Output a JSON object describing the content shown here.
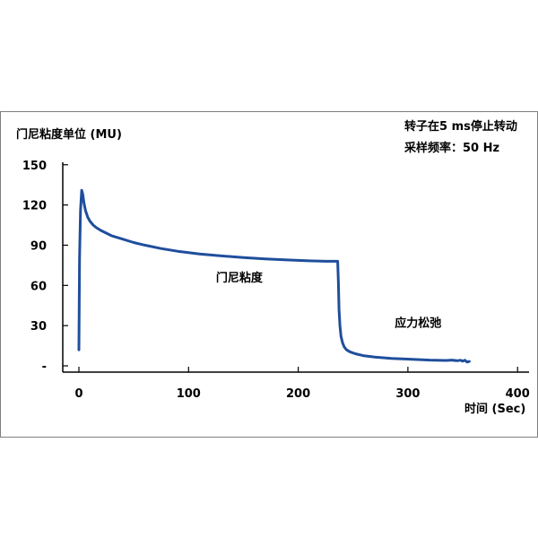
{
  "chart_data": {
    "type": "line",
    "ylabel": "门尼粘度单位 (MU)",
    "xlabel": "时间 (Sec)",
    "xlim": [
      -15,
      400
    ],
    "ylim": [
      0,
      155
    ],
    "x_ticks": [
      "0",
      "100",
      "200",
      "300",
      "400"
    ],
    "y_ticks": [
      "-",
      "30",
      "60",
      "90",
      "120",
      "150"
    ],
    "grid": false,
    "info_lines": [
      "转子在5 ms停止转动",
      "采样频率：50 Hz"
    ],
    "annotations": [
      {
        "text": "门尼粘度",
        "x": 125,
        "y": 63
      },
      {
        "text": "应力松弛",
        "x": 288,
        "y": 29
      }
    ],
    "line_color": "#1f4e9c",
    "series": [
      {
        "x": [
          0,
          0.6,
          1.5,
          2.5,
          3.5,
          4.5,
          6,
          8,
          10,
          13,
          16,
          20,
          25,
          30,
          40,
          50,
          60,
          75,
          90,
          110,
          130,
          150,
          170,
          190,
          210,
          225,
          236,
          236.6,
          237.2,
          238,
          239,
          240.5,
          242,
          244,
          247,
          252,
          260,
          270,
          285,
          300,
          320,
          335,
          340,
          345,
          348,
          350,
          352,
          354,
          356
        ],
        "y": [
          12,
          80,
          116,
          131,
          128,
          122,
          116,
          111,
          108,
          105,
          103,
          101,
          99,
          97,
          94.5,
          92,
          90,
          87.5,
          85.5,
          83.5,
          82,
          80.8,
          79.8,
          79,
          78.3,
          78,
          78,
          62,
          42,
          30,
          22,
          17,
          14,
          12,
          10.5,
          9,
          7.5,
          6.5,
          5.5,
          5,
          4.3,
          4,
          4.3,
          3.8,
          4.2,
          3.5,
          4.2,
          2.8,
          3.3
        ]
      }
    ]
  }
}
